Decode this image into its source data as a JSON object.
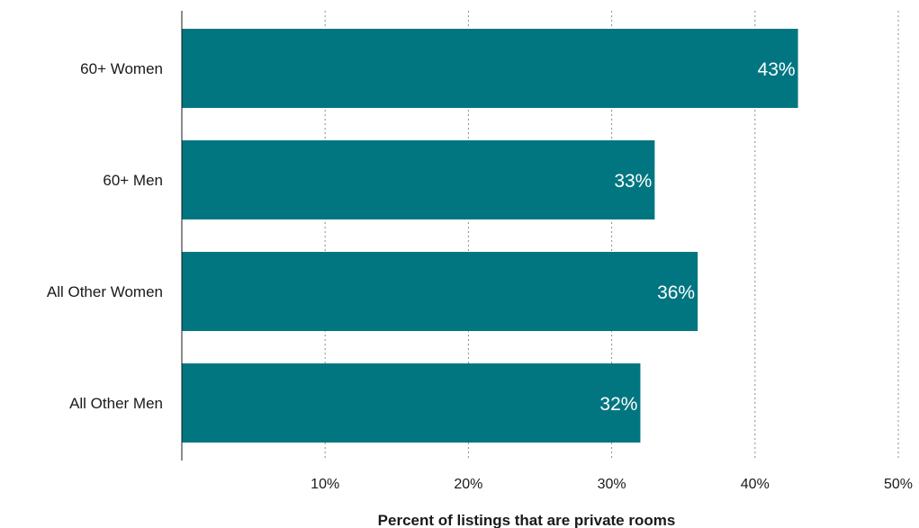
{
  "chart_data": {
    "type": "bar",
    "orientation": "horizontal",
    "categories": [
      "60+ Women",
      "60+ Men",
      "All Other Women",
      "All Other Men"
    ],
    "values": [
      43,
      33,
      36,
      32
    ],
    "data_labels": [
      "43%",
      "33%",
      "36%",
      "32%"
    ],
    "xlim": [
      0,
      50
    ],
    "xticks": [
      10,
      20,
      30,
      40,
      50
    ],
    "xtick_labels": [
      "10%",
      "20%",
      "30%",
      "40%",
      "50%"
    ],
    "xlabel": "Percent of listings that are private rooms",
    "grid": "vertical dotted",
    "bar_color": "#017681"
  }
}
